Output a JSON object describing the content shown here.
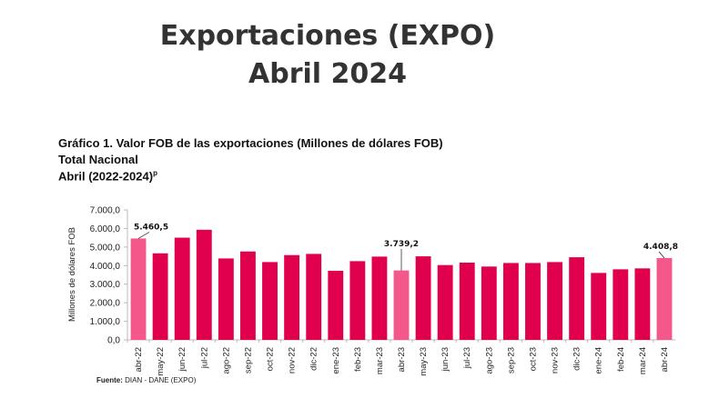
{
  "header": {
    "title_line1": "Exportaciones (EXPO)",
    "title_line2": "Abril 2024"
  },
  "chart_header": {
    "line1": "Gráfico 1. Valor FOB de las exportaciones (Millones de dólares FOB)",
    "line2": "Total Nacional",
    "line3": "Abril (2022-2024)",
    "line3_sup": "p"
  },
  "source": {
    "label": "Fuente:",
    "text": "DIAN - DANE (EXPO)"
  },
  "chart_data": {
    "type": "bar",
    "title": "Gráfico 1. Valor FOB de las exportaciones (Millones de dólares FOB)",
    "xlabel": "",
    "ylabel": "Millones de dólares FOB",
    "ylim": [
      0,
      7000
    ],
    "yticks": [
      "0,0",
      "1.000,0",
      "2.000,0",
      "3.000,0",
      "4.000,0",
      "5.000,0",
      "6.000,0",
      "7.000,0"
    ],
    "grid": false,
    "categories": [
      "abr-22",
      "may-22",
      "jun-22",
      "jul-22",
      "ago-22",
      "sep-22",
      "oct-22",
      "nov-22",
      "dic-22",
      "ene-23",
      "feb-23",
      "mar-23",
      "abr-23",
      "may-23",
      "jun-23",
      "jul-23",
      "ago-23",
      "sep-23",
      "oct-23",
      "nov-23",
      "dic-23",
      "ene-24",
      "feb-24",
      "mar-24",
      "abr-24"
    ],
    "values": [
      5460.5,
      4660,
      5505,
      5930,
      4385,
      4760,
      4190,
      4565,
      4630,
      3720,
      4240,
      4485,
      3739.2,
      4500,
      4030,
      4160,
      3950,
      4140,
      4140,
      4190,
      4450,
      3605,
      3800,
      3850,
      4408.8
    ],
    "highlighted": [
      "abr-22",
      "abr-23",
      "abr-24"
    ],
    "data_labels": {
      "abr-22": "5.460,5",
      "abr-23": "3.739,2",
      "abr-24": "4.408,8"
    },
    "colors": {
      "bar": "#E0004D",
      "highlight": "#F4588A"
    }
  }
}
